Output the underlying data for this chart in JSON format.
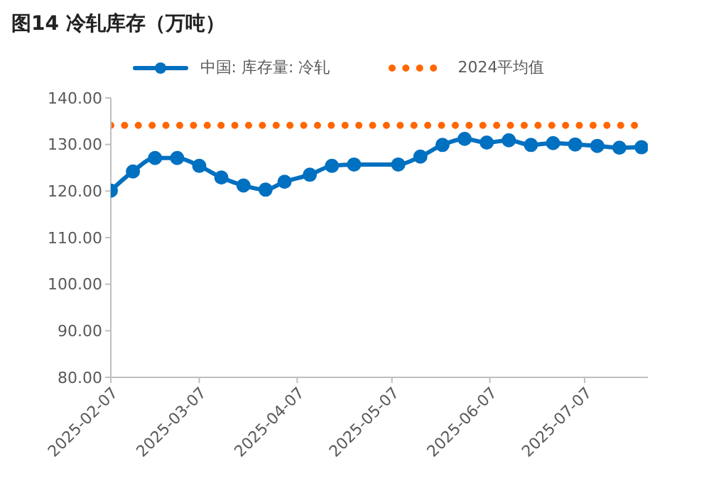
{
  "chart_data": {
    "type": "line",
    "title": "图14 冷轧库存（万吨）",
    "x": [
      "2025-02-07",
      "2025-02-14",
      "2025-02-21",
      "2025-02-28",
      "2025-03-07",
      "2025-03-14",
      "2025-03-21",
      "2025-03-28",
      "2025-04-03",
      "2025-04-11",
      "2025-04-18",
      "2025-04-25",
      "2025-05-09",
      "2025-05-16",
      "2025-05-23",
      "2025-05-30",
      "2025-06-06",
      "2025-06-13",
      "2025-06-20",
      "2025-06-27",
      "2025-07-04",
      "2025-07-11",
      "2025-07-18",
      "2025-07-25"
    ],
    "series": [
      {
        "name": "中国: 库存量: 冷轧",
        "color": "#0070c0",
        "marker": "circle",
        "line_style": "solid",
        "values": [
          120.1,
          124.2,
          127.1,
          127.1,
          125.4,
          122.9,
          121.2,
          120.3,
          122.0,
          123.5,
          125.4,
          125.7,
          125.7,
          127.4,
          129.9,
          131.2,
          130.4,
          130.9,
          129.9,
          130.3,
          130.0,
          129.7,
          129.3,
          129.4
        ]
      },
      {
        "name": "2024平均值",
        "color": "#ff6600",
        "marker": "none",
        "line_style": "dotted",
        "values": [
          134.1,
          134.1,
          134.1,
          134.1,
          134.1,
          134.1,
          134.1,
          134.1,
          134.1,
          134.1,
          134.1,
          134.1,
          134.1,
          134.1,
          134.1,
          134.1,
          134.1,
          134.1,
          134.1,
          134.1,
          134.1,
          134.1,
          134.1,
          134.1
        ]
      }
    ],
    "xlim": [
      "2025-02-07",
      "2025-07-27"
    ],
    "xticks": [
      "2025-02-07",
      "2025-03-07",
      "2025-04-07",
      "2025-05-07",
      "2025-06-07",
      "2025-07-07"
    ],
    "ylim": [
      80,
      140
    ],
    "yticks": [
      {
        "value": 80,
        "label": "80.00"
      },
      {
        "value": 90,
        "label": "90.00"
      },
      {
        "value": 100,
        "label": "100.00"
      },
      {
        "value": 110,
        "label": "110.00"
      },
      {
        "value": 120,
        "label": "120.00"
      },
      {
        "value": 130,
        "label": "130.00"
      },
      {
        "value": 140,
        "label": "140.00"
      }
    ],
    "grid": false,
    "legend": "top"
  }
}
